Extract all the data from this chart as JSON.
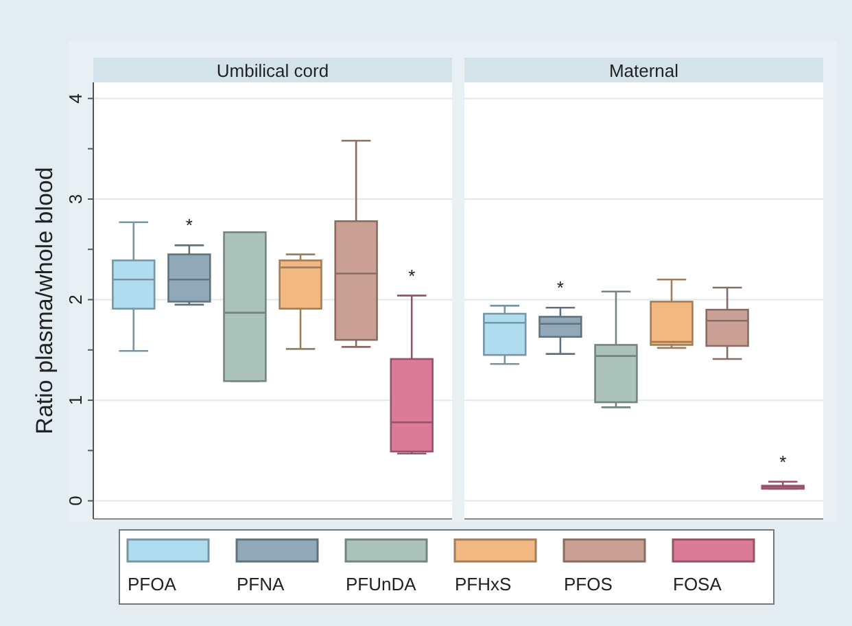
{
  "chart_data": {
    "type": "box",
    "ylabel": "Ratio plasma/whole blood",
    "categories": [
      "Umbilical cord",
      "Maternal"
    ],
    "ylim": [
      -0.18,
      4.16
    ],
    "yticks": [
      0,
      {
        "value": 0.5,
        "label": null
      },
      1,
      {
        "value": 1.5,
        "label": null
      },
      2,
      {
        "value": 2.5,
        "label": null
      },
      3,
      {
        "value": 3.5,
        "label": null
      },
      4
    ],
    "grid": "y",
    "legend": "bottom",
    "series": [
      {
        "name": "PFOA",
        "color": "#b0dcf0",
        "boxes": [
          {
            "low": 1.49,
            "q1": 1.91,
            "median": 2.2,
            "q3": 2.39,
            "high": 2.77
          },
          {
            "low": 1.36,
            "q1": 1.45,
            "median": 1.77,
            "q3": 1.86,
            "high": 1.94
          }
        ]
      },
      {
        "name": "PFNA",
        "color": "#8fa9b8",
        "boxes": [
          {
            "low": 1.95,
            "q1": 1.98,
            "median": 2.2,
            "q3": 2.45,
            "high": 2.54
          },
          {
            "low": 1.46,
            "q1": 1.63,
            "median": 1.76,
            "q3": 1.83,
            "high": 1.92
          }
        ]
      },
      {
        "name": "PFUnDA",
        "color": "#abc3bb",
        "boxes": [
          {
            "low": 1.19,
            "q1": 1.19,
            "median": 1.87,
            "q3": 2.67,
            "high": 2.67
          },
          {
            "low": 0.93,
            "q1": 0.98,
            "median": 1.44,
            "q3": 1.55,
            "high": 2.08
          }
        ]
      },
      {
        "name": "PFHxS",
        "color": "#f2b882",
        "boxes": [
          {
            "low": 1.51,
            "q1": 1.91,
            "median": 2.32,
            "q3": 2.39,
            "high": 2.45
          },
          {
            "low": 1.52,
            "q1": 1.55,
            "median": 1.58,
            "q3": 1.98,
            "high": 2.2
          }
        ]
      },
      {
        "name": "PFOS",
        "color": "#c9a093",
        "boxes": [
          {
            "low": 1.53,
            "q1": 1.6,
            "median": 2.26,
            "q3": 2.78,
            "high": 3.58
          },
          {
            "low": 1.41,
            "q1": 1.54,
            "median": 1.79,
            "q3": 1.9,
            "high": 2.12
          }
        ]
      },
      {
        "name": "FOSA",
        "color": "#dc7b98",
        "boxes": [
          {
            "low": 0.47,
            "q1": 0.49,
            "median": 0.78,
            "q3": 1.41,
            "high": 2.04
          },
          {
            "low": 0.12,
            "q1": 0.12,
            "median": 0.14,
            "q3": 0.15,
            "high": 0.19
          }
        ]
      }
    ],
    "annotations": [
      "*",
      "*",
      "*",
      "*"
    ]
  }
}
